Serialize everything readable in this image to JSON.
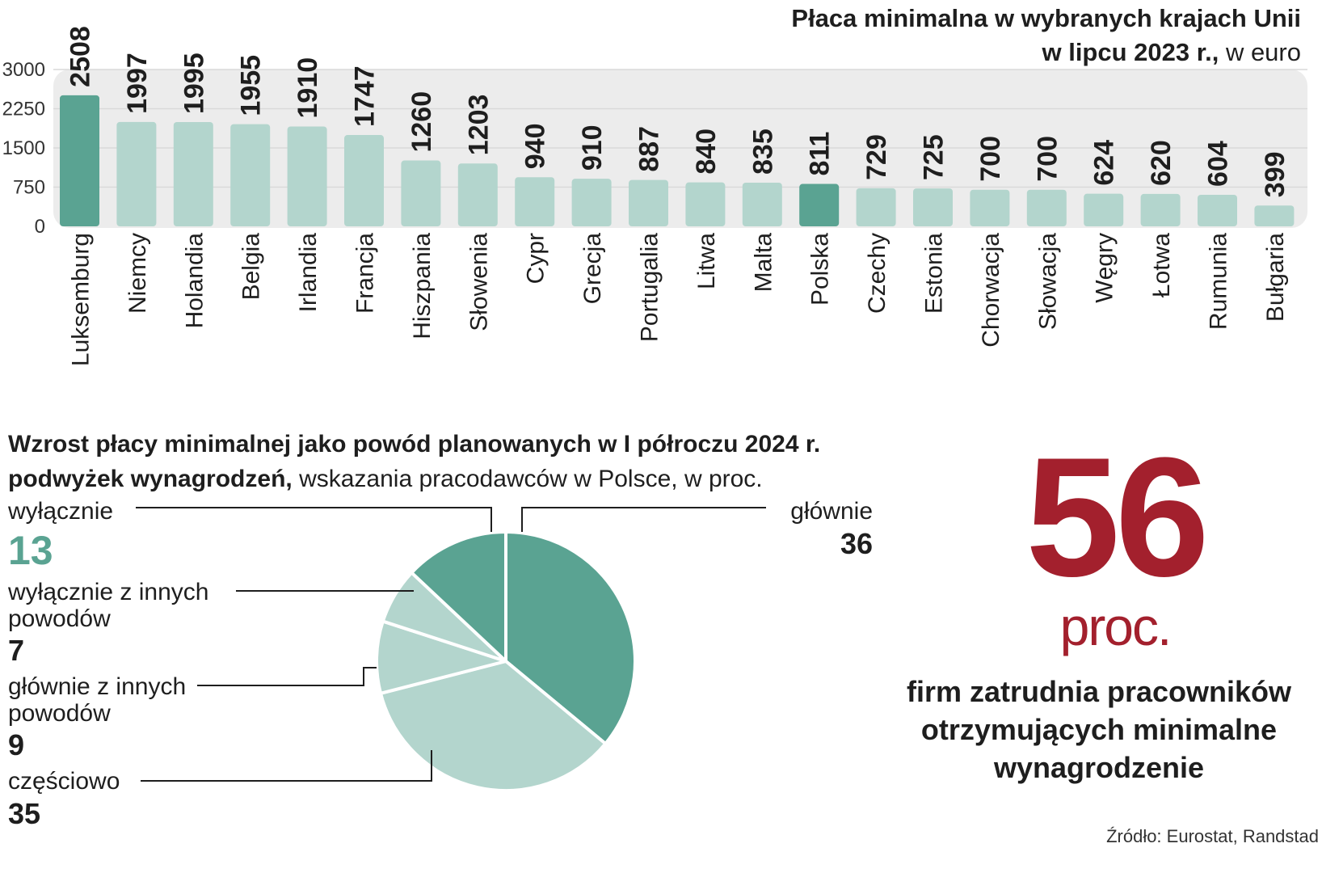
{
  "bar_title": {
    "line1_bold": "Płaca minimalna w wybranych krajach Unii",
    "line2_bold": "w lipcu 2023 r.,",
    "line2_rest": " w euro"
  },
  "pie_title": {
    "bold": "Wzrost płacy minimalnej jako  powód planowanych w I półroczu 2024 r. podwyżek wynagrodzeń,",
    "rest": " wskazania pracodawców w Polsce, w proc."
  },
  "big_stat": {
    "value": "56",
    "unit": "proc.",
    "description": "firm zatrudnia pracowników otrzymujących minimalne wynagrodzenie"
  },
  "source": "Źródło: Eurostat, Randstad",
  "colors": {
    "dark_teal": "#5aa392",
    "light_teal": "#b3d5cd",
    "panel_bg": "#ececec",
    "red": "#a3202d"
  },
  "chart_data": [
    {
      "type": "bar",
      "title": "Płaca minimalna w wybranych krajach Unii w lipcu 2023 r., w euro",
      "categories": [
        "Luksemburg",
        "Niemcy",
        "Holandia",
        "Belgia",
        "Irlandia",
        "Francja",
        "Hiszpania",
        "Słowenia",
        "Cypr",
        "Grecja",
        "Portugalia",
        "Litwa",
        "Malta",
        "Polska",
        "Czechy",
        "Estonia",
        "Chorwacja",
        "Słowacja",
        "Węgry",
        "Łotwa",
        "Rumunia",
        "Bułgaria"
      ],
      "values": [
        2508,
        1997,
        1995,
        1955,
        1910,
        1747,
        1260,
        1203,
        940,
        910,
        887,
        840,
        835,
        811,
        729,
        725,
        700,
        700,
        624,
        620,
        604,
        399
      ],
      "highlight": [
        "Luksemburg",
        "Polska"
      ],
      "yticks": [
        0,
        750,
        1500,
        2250,
        3000
      ],
      "ylim": [
        0,
        3000
      ],
      "grid": true
    },
    {
      "type": "pie",
      "slices": [
        {
          "label": "głównie",
          "value": 36
        },
        {
          "label": "częściowo",
          "value": 35
        },
        {
          "label": "głównie z innych powodów",
          "value": 9
        },
        {
          "label": "wyłącznie z innych powodów",
          "value": 7
        },
        {
          "label": "wyłącznie",
          "value": 13
        }
      ]
    }
  ]
}
